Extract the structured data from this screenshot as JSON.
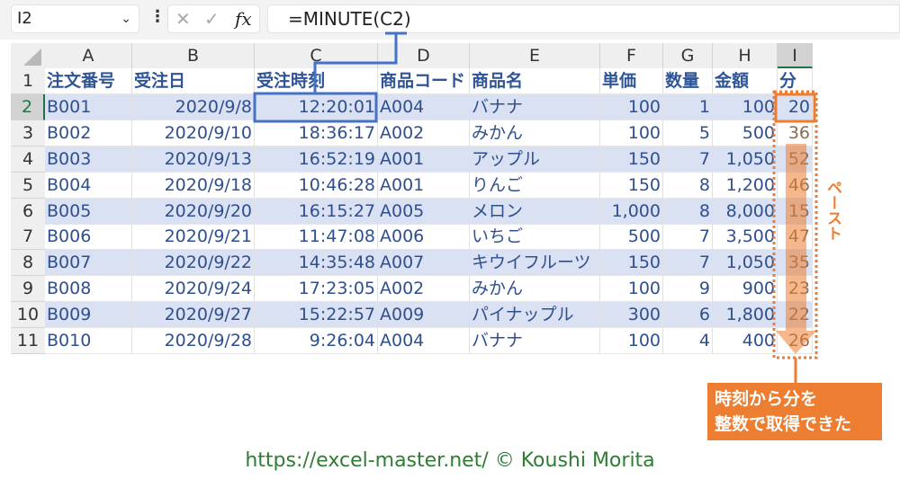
{
  "name_box": "I2",
  "formula": "=MINUTE(C2)",
  "fx_label": "fx",
  "columns": [
    "A",
    "B",
    "C",
    "D",
    "E",
    "F",
    "G",
    "H",
    "I"
  ],
  "rows": [
    "1",
    "2",
    "3",
    "4",
    "5",
    "6",
    "7",
    "8",
    "9",
    "10",
    "11"
  ],
  "headers": [
    "注文番号",
    "受注日",
    "受注時刻",
    "商品コード",
    "商品名",
    "単価",
    "数量",
    "金額",
    "分"
  ],
  "data": [
    [
      "B001",
      "2020/9/8",
      "12:20:01",
      "A004",
      "バナナ",
      "100",
      "1",
      "100",
      "20"
    ],
    [
      "B002",
      "2020/9/10",
      "18:36:17",
      "A002",
      "みかん",
      "100",
      "5",
      "500",
      "36"
    ],
    [
      "B003",
      "2020/9/13",
      "16:52:19",
      "A001",
      "アップル",
      "150",
      "7",
      "1,050",
      "52"
    ],
    [
      "B004",
      "2020/9/18",
      "10:46:28",
      "A001",
      "りんご",
      "150",
      "8",
      "1,200",
      "46"
    ],
    [
      "B005",
      "2020/9/20",
      "16:15:27",
      "A005",
      "メロン",
      "1,000",
      "8",
      "8,000",
      "15"
    ],
    [
      "B006",
      "2020/9/21",
      "11:47:08",
      "A006",
      "いちご",
      "500",
      "7",
      "3,500",
      "47"
    ],
    [
      "B007",
      "2020/9/22",
      "14:35:48",
      "A007",
      "キウイフルーツ",
      "150",
      "7",
      "1,050",
      "35"
    ],
    [
      "B008",
      "2020/9/24",
      "17:23:05",
      "A002",
      "みかん",
      "100",
      "9",
      "900",
      "23"
    ],
    [
      "B009",
      "2020/9/27",
      "15:22:57",
      "A009",
      "パイナップル",
      "300",
      "6",
      "1,800",
      "22"
    ],
    [
      "B010",
      "2020/9/28",
      "9:26:04",
      "A004",
      "バナナ",
      "100",
      "4",
      "400",
      "26"
    ]
  ],
  "arrow_label": "ペースト",
  "callout": [
    "時刻から分を",
    "整数で取得できた"
  ],
  "footer": "https://excel-master.net/  © Koushi Morita",
  "colors": {
    "accent": "#ed7d31",
    "band": "#d9e1f2",
    "text": "#2f5597",
    "footer": "#2e7d32"
  }
}
